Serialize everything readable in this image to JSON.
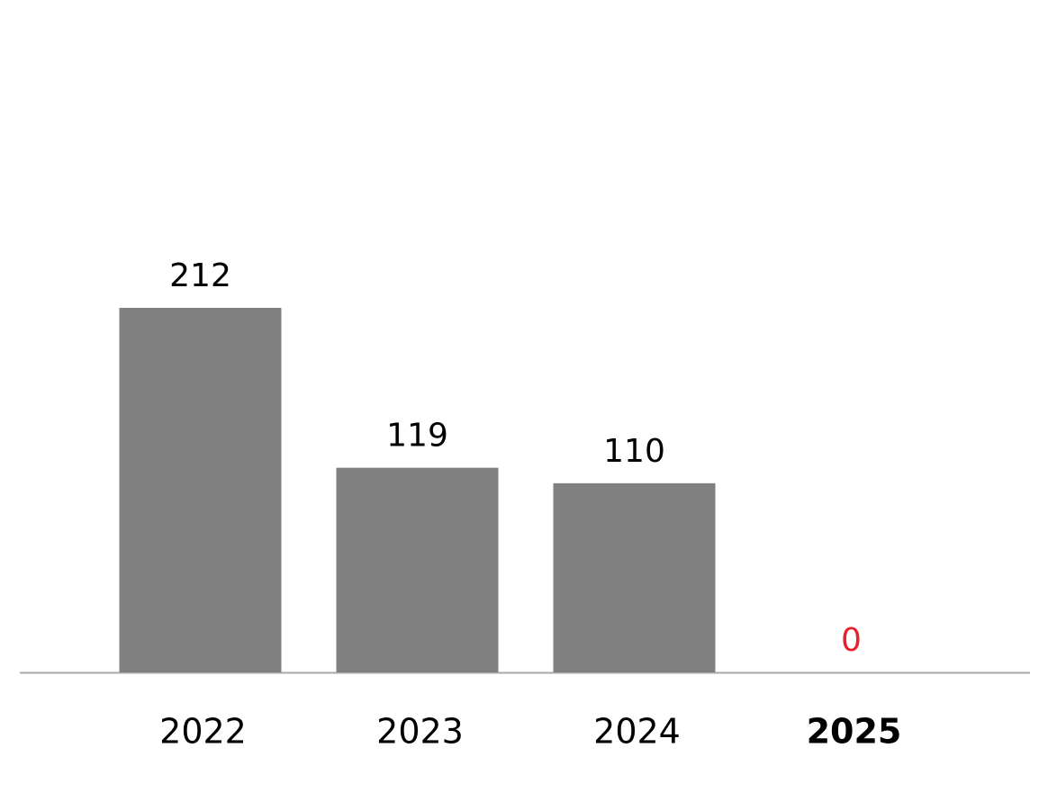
{
  "chart_data": {
    "type": "bar",
    "categories": [
      "2022",
      "2023",
      "2024",
      "2025"
    ],
    "values": [
      212,
      119,
      110,
      0
    ],
    "color": "#808080",
    "label_colors": [
      "#000000",
      "#000000",
      "#000000",
      "#e8202a"
    ],
    "category_weights": [
      "normal",
      "normal",
      "normal",
      "bold"
    ]
  }
}
